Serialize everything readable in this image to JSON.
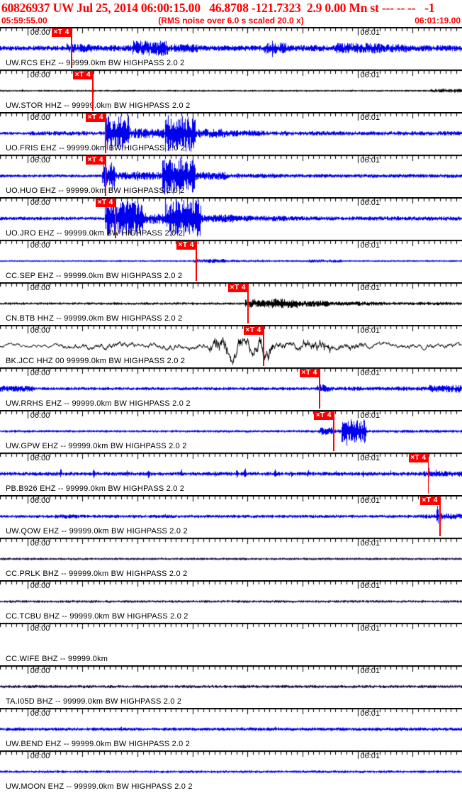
{
  "header": {
    "line1": "60826937 UW Jul 25, 2014 06:00:15.00   46.8708 -121.7323  2.9 0.00 Mn st --- -- --   -1",
    "event_id": "60826937",
    "network": "UW",
    "origin_time": "Jul 25, 2014 06:00:15.00",
    "latitude": "46.8708",
    "longitude": "-121.7323",
    "depth": "2.9",
    "magnitude": "0.00 Mn",
    "window_start": "05:59:55.00",
    "scaling_note": "(RMS noise over 6.0 s scaled 20.0 x)",
    "window_end": "06:01:19.00"
  },
  "timeline": {
    "start": "05:59:55.00",
    "end": "06:01:19.00",
    "duration_s": 84,
    "minute_labels": [
      {
        "text": "06:00",
        "t": 5
      },
      {
        "text": "06:01",
        "t": 65
      }
    ]
  },
  "colors": {
    "blue": "#0000ee",
    "black": "#000000",
    "dark": "#1e0d40",
    "pick": "#ff0000",
    "header_text": "#ff0000",
    "axis": "#000000"
  },
  "traces": [
    {
      "label": "UW.RCS EHZ -- 99999.0km BW HIGHPASS 2.0 2",
      "station": "UW.RCS",
      "channel": "EHZ",
      "location": "--",
      "color": "blue",
      "smooth": 0,
      "pick": {
        "label": "×T 4",
        "t": 12.9
      },
      "envelope": [
        [
          0,
          12,
          3.5
        ],
        [
          12,
          16.5,
          7
        ],
        [
          16.5,
          24,
          4.5
        ],
        [
          24,
          30.5,
          11
        ],
        [
          30.5,
          36,
          6
        ],
        [
          36,
          48,
          4
        ],
        [
          48,
          52,
          8
        ],
        [
          52,
          61,
          4.5
        ],
        [
          61,
          69.5,
          7.5
        ],
        [
          69.5,
          74,
          6
        ],
        [
          74,
          84,
          4.5
        ]
      ],
      "spikes": [
        [
          13,
          9
        ],
        [
          49.5,
          15
        ],
        [
          50.3,
          12
        ]
      ]
    },
    {
      "label": "UW.STOR HHZ -- 99999.0km BW HIGHPASS 2.0 2",
      "station": "UW.STOR",
      "channel": "HHZ",
      "location": "--",
      "color": "black",
      "smooth": 0,
      "pick": {
        "label": "×T 4",
        "t": 16.8
      },
      "envelope": [
        [
          0,
          78,
          1.3
        ],
        [
          78,
          84,
          2.6
        ]
      ],
      "spikes": [
        [
          4,
          2.5
        ],
        [
          16.8,
          8
        ],
        [
          54,
          2.5
        ],
        [
          64,
          2
        ],
        [
          80.5,
          3.5
        ]
      ]
    },
    {
      "label": "UO.FRIS EHZ -- 99999.0km BW HIGHPASS 2.0 2",
      "station": "UO.FRIS",
      "channel": "EHZ",
      "location": "--",
      "color": "blue",
      "smooth": 0,
      "pick": {
        "label": "×T 4",
        "t": 19.1
      },
      "envelope": [
        [
          0,
          5,
          2
        ],
        [
          5,
          19,
          3
        ],
        [
          19,
          23.5,
          26
        ],
        [
          23.5,
          30,
          7
        ],
        [
          30,
          35.5,
          26
        ],
        [
          35.5,
          41,
          6.5
        ],
        [
          41,
          48,
          4.5
        ],
        [
          48,
          84,
          3
        ]
      ],
      "spikes": [
        [
          45,
          6
        ],
        [
          52,
          5
        ]
      ]
    },
    {
      "label": "UO.HUO EHZ -- 99999.0km BW HIGHPASS 2.0 2",
      "station": "UO.HUO",
      "channel": "EHZ",
      "location": "--",
      "color": "blue",
      "smooth": 0,
      "pick": {
        "label": "×T 4",
        "t": 19.1
      },
      "envelope": [
        [
          0,
          18.5,
          2.2
        ],
        [
          18.5,
          21,
          20
        ],
        [
          21,
          29.5,
          5.5
        ],
        [
          29.5,
          35.5,
          26
        ],
        [
          35.5,
          41,
          6
        ],
        [
          41,
          50,
          3.5
        ],
        [
          50,
          84,
          2.8
        ]
      ],
      "spikes": [
        [
          25,
          8
        ]
      ]
    },
    {
      "label": "UO.JRO EHZ -- 99999.0km BW HIGHPASS 2.0 2",
      "station": "UO.JRO",
      "channel": "EHZ",
      "location": "--",
      "color": "blue",
      "smooth": 0,
      "pick": {
        "label": "×T 4",
        "t": 20.9
      },
      "envelope": [
        [
          0,
          19,
          2.5
        ],
        [
          19,
          26,
          25
        ],
        [
          26,
          30,
          8
        ],
        [
          30,
          36.5,
          26
        ],
        [
          36.5,
          43,
          6
        ],
        [
          43,
          52,
          4
        ],
        [
          52,
          84,
          3
        ]
      ],
      "spikes": [
        [
          43.4,
          8
        ]
      ]
    },
    {
      "label": "CC.SEP EHZ -- 99999.0km BW HIGHPASS 2.0 2",
      "station": "CC.SEP",
      "channel": "EHZ",
      "location": "--",
      "color": "blue",
      "smooth": 0,
      "pick": {
        "label": "×T 4",
        "t": 35.6
      },
      "envelope": [
        [
          0,
          35,
          1.2
        ],
        [
          35,
          41,
          3
        ],
        [
          41,
          49,
          1.8
        ],
        [
          49,
          56,
          1.3
        ],
        [
          56,
          62,
          2.2
        ],
        [
          62,
          84,
          1.3
        ]
      ],
      "spikes": []
    },
    {
      "label": "CN.BTB HHZ -- 99999.0km BW HIGHPASS 2.0 2",
      "station": "CN.BTB",
      "channel": "HHZ",
      "location": "--",
      "color": "black",
      "smooth": 0.3,
      "pick": {
        "label": "×T 4",
        "t": 45.0
      },
      "envelope": [
        [
          0,
          44.5,
          1.8
        ],
        [
          44.5,
          49,
          6
        ],
        [
          49,
          54,
          7
        ],
        [
          54,
          60,
          4.5
        ],
        [
          60,
          70,
          3
        ],
        [
          70,
          84,
          2.3
        ]
      ],
      "spikes": [
        [
          46.3,
          9
        ]
      ]
    },
    {
      "label": "BK.JCC HHZ 00 99999.0km BW HIGHPASS 2.0 2",
      "station": "BK.JCC",
      "channel": "HHZ",
      "location": "00",
      "color": "black",
      "smooth": 0.8,
      "pick": {
        "label": "×T 4",
        "t": 47.8
      },
      "envelope": [
        [
          0,
          10,
          2
        ],
        [
          10,
          38,
          3.5
        ],
        [
          38,
          50,
          11
        ],
        [
          50,
          55,
          5
        ],
        [
          55,
          60,
          8
        ],
        [
          60,
          66,
          4.5
        ],
        [
          66,
          84,
          3.2
        ]
      ],
      "spikes": [
        [
          40,
          13
        ],
        [
          47.8,
          13
        ]
      ]
    },
    {
      "label": "UW.RRHS EHZ -- 99999.0km BW HIGHPASS 2.0 2",
      "station": "UW.RRHS",
      "channel": "EHZ",
      "location": "--",
      "color": "blue",
      "smooth": 0,
      "pick": {
        "label": "×T 4",
        "t": 58.0
      },
      "envelope": [
        [
          0,
          6,
          4.5
        ],
        [
          6,
          57.5,
          2.3
        ],
        [
          57.5,
          60,
          6
        ],
        [
          60,
          78,
          3
        ],
        [
          78,
          84,
          5.5
        ]
      ],
      "spikes": [
        [
          58.1,
          9
        ]
      ]
    },
    {
      "label": "UW.GPW EHZ -- 99999.0km BW HIGHPASS 2.0 2",
      "station": "UW.GPW",
      "channel": "EHZ",
      "location": "--",
      "color": "blue",
      "smooth": 0,
      "pick": {
        "label": "×T 4",
        "t": 60.6
      },
      "envelope": [
        [
          0,
          58,
          1.8
        ],
        [
          58,
          60.5,
          5.5
        ],
        [
          60.5,
          62,
          3
        ],
        [
          62,
          66.5,
          17
        ],
        [
          66.5,
          84,
          2
        ]
      ],
      "spikes": [
        [
          63,
          22
        ]
      ]
    },
    {
      "label": "PB.B926 EHZ -- 99999.0km BW HIGHPASS 2.0 2",
      "station": "PB.B926",
      "channel": "EHZ",
      "location": "--",
      "color": "blue",
      "smooth": 0,
      "pick": {
        "label": "×T 4",
        "t": 77.8
      },
      "envelope": [
        [
          0,
          77,
          2.8
        ],
        [
          77,
          84,
          4
        ]
      ],
      "spikes": [
        [
          6,
          6
        ],
        [
          11,
          8
        ],
        [
          17,
          7
        ],
        [
          23,
          6
        ],
        [
          27,
          9
        ],
        [
          33,
          7
        ],
        [
          39,
          6
        ],
        [
          43,
          8
        ],
        [
          44.5,
          10
        ],
        [
          50,
          7
        ],
        [
          53,
          8
        ],
        [
          56,
          6
        ],
        [
          61,
          7
        ],
        [
          66,
          6
        ],
        [
          71,
          6
        ],
        [
          77.9,
          12
        ],
        [
          79.2,
          7
        ]
      ]
    },
    {
      "label": "UW.QOW EHZ -- 99999.0km BW HIGHPASS 2.0 2",
      "station": "UW.QOW",
      "channel": "EHZ",
      "location": "--",
      "color": "blue",
      "smooth": 0,
      "pick": {
        "label": "×T 4",
        "t": 79.9
      },
      "envelope": [
        [
          0,
          10,
          2.2
        ],
        [
          10,
          14,
          3
        ],
        [
          14,
          76,
          2.3
        ],
        [
          76,
          80,
          3
        ],
        [
          80,
          84,
          4.2
        ]
      ],
      "spikes": [
        [
          30,
          4
        ],
        [
          79.5,
          17
        ],
        [
          80.2,
          10
        ]
      ]
    },
    {
      "label": "CC.PRLK BHZ -- 99999.0km BW HIGHPASS 2.0 2",
      "station": "CC.PRLK",
      "channel": "BHZ",
      "location": "--",
      "color": "dark",
      "smooth": 0,
      "pick": null,
      "envelope": [
        [
          0,
          84,
          1.7
        ]
      ],
      "spikes": []
    },
    {
      "label": "CC.TCBU BHZ -- 99999.0km BW HIGHPASS 2.0 2",
      "station": "CC.TCBU",
      "channel": "BHZ",
      "location": "--",
      "color": "dark",
      "smooth": 0,
      "pick": null,
      "envelope": [
        [
          0,
          84,
          1.9
        ]
      ],
      "spikes": []
    },
    {
      "label": "CC.WIFE BHZ -- 99999.0km",
      "station": "CC.WIFE",
      "channel": "BHZ",
      "location": "--",
      "color": "dark",
      "smooth": 0,
      "pick": null,
      "envelope": [],
      "spikes": []
    },
    {
      "label": "TA.I05D BHZ -- 99999.0km BW HIGHPASS 2.0 2",
      "station": "TA.I05D",
      "channel": "BHZ",
      "location": "--",
      "color": "dark",
      "smooth": 0,
      "pick": null,
      "envelope": [
        [
          0,
          84,
          2.2
        ]
      ],
      "spikes": []
    },
    {
      "label": "UW.BEND EHZ -- 99999.0km BW HIGHPASS 2.0 2",
      "station": "UW.BEND",
      "channel": "EHZ",
      "location": "--",
      "color": "blue",
      "smooth": 0,
      "pick": null,
      "envelope": [
        [
          0,
          84,
          2.4
        ]
      ],
      "spikes": [
        [
          22,
          4
        ],
        [
          50,
          4
        ]
      ]
    },
    {
      "label": "UW.MOON EHZ -- 99999.0km BW HIGHPASS 2.0 2",
      "station": "UW.MOON",
      "channel": "EHZ",
      "location": "--",
      "color": "blue",
      "smooth": 0,
      "pick": null,
      "envelope": [
        [
          0,
          84,
          1.9
        ]
      ],
      "spikes": []
    }
  ]
}
